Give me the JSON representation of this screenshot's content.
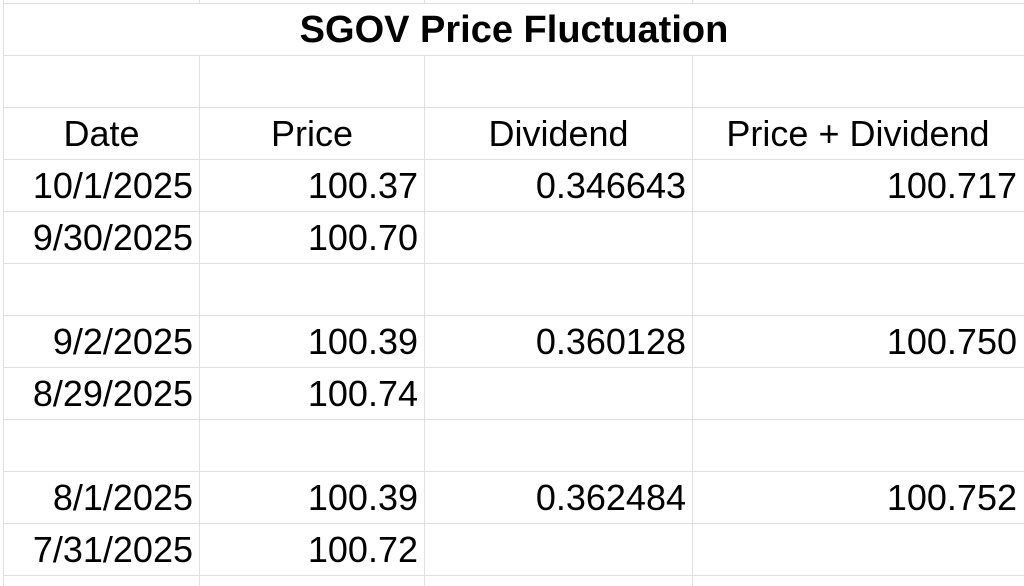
{
  "title": "SGOV Price Fluctuation",
  "table": {
    "columns": [
      "Date",
      "Price",
      "Dividend",
      "Price + Dividend"
    ],
    "rows": [
      {
        "date": "10/1/2025",
        "price": "100.37",
        "dividend": "0.346643",
        "total": "100.717"
      },
      {
        "date": "9/30/2025",
        "price": "100.70",
        "dividend": "",
        "total": ""
      },
      {
        "date": "",
        "price": "",
        "dividend": "",
        "total": ""
      },
      {
        "date": "9/2/2025",
        "price": "100.39",
        "dividend": "0.360128",
        "total": "100.750"
      },
      {
        "date": "8/29/2025",
        "price": "100.74",
        "dividend": "",
        "total": ""
      },
      {
        "date": "",
        "price": "",
        "dividend": "",
        "total": ""
      },
      {
        "date": "8/1/2025",
        "price": "100.39",
        "dividend": "0.362484",
        "total": "100.752"
      },
      {
        "date": "7/31/2025",
        "price": "100.72",
        "dividend": "",
        "total": ""
      }
    ]
  },
  "colors": {
    "gridline": "#e0e0e0",
    "text": "#000000",
    "background": "#ffffff"
  }
}
